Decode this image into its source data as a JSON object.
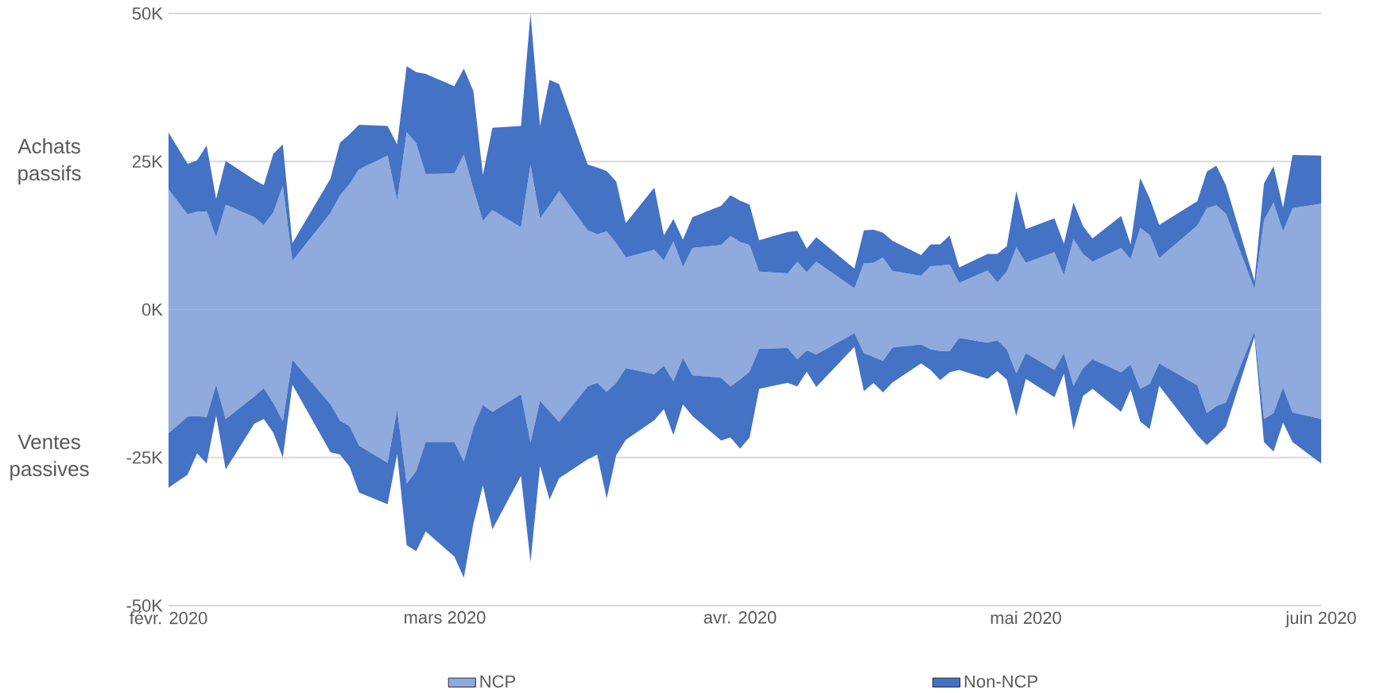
{
  "chart_data": [
    {
      "type": "area",
      "stacked": true,
      "grid": "y",
      "tick_labels": "y",
      "x": [
        "2020-02-01",
        "2020-02-03",
        "2020-02-04",
        "2020-02-05",
        "2020-02-06",
        "2020-02-07",
        "2020-02-10",
        "2020-02-11",
        "2020-02-12",
        "2020-02-13",
        "2020-02-14",
        "2020-02-18",
        "2020-02-19",
        "2020-02-20",
        "2020-02-21",
        "2020-02-24",
        "2020-02-25",
        "2020-02-26",
        "2020-02-27",
        "2020-02-28",
        "2020-03-02",
        "2020-03-03",
        "2020-03-04",
        "2020-03-05",
        "2020-03-06",
        "2020-03-09",
        "2020-03-10",
        "2020-03-11",
        "2020-03-12",
        "2020-03-13",
        "2020-03-16",
        "2020-03-17",
        "2020-03-18",
        "2020-03-19",
        "2020-03-20",
        "2020-03-23",
        "2020-03-24",
        "2020-03-25",
        "2020-03-26",
        "2020-03-27",
        "2020-03-30",
        "2020-03-31",
        "2020-04-01",
        "2020-04-02",
        "2020-04-03",
        "2020-04-06",
        "2020-04-07",
        "2020-04-08",
        "2020-04-09",
        "2020-04-13",
        "2020-04-14",
        "2020-04-15",
        "2020-04-16",
        "2020-04-17",
        "2020-04-20",
        "2020-04-21",
        "2020-04-22",
        "2020-04-23",
        "2020-04-24",
        "2020-04-27",
        "2020-04-28",
        "2020-04-29",
        "2020-04-30",
        "2020-05-01",
        "2020-05-04",
        "2020-05-05",
        "2020-05-06",
        "2020-05-07",
        "2020-05-08",
        "2020-05-11",
        "2020-05-12",
        "2020-05-13",
        "2020-05-14",
        "2020-05-15",
        "2020-05-19",
        "2020-05-20",
        "2020-05-21",
        "2020-05-22",
        "2020-05-25",
        "2020-05-26",
        "2020-05-27",
        "2020-05-28",
        "2020-05-29",
        "2020-06-01"
      ],
      "series": [
        {
          "color": "#8faadc",
          "values": [
            20.3,
            16.1,
            16.5,
            16.6,
            12.2,
            17.7,
            15.6,
            14.3,
            16.4,
            20.9,
            8.2,
            16.3,
            19.3,
            21.2,
            23.7,
            26.0,
            18.4,
            30.0,
            28.1,
            22.9,
            23.0,
            26.2,
            20.4,
            15.0,
            16.8,
            13.9,
            24.5,
            15.4,
            17.6,
            20.0,
            13.4,
            12.7,
            13.2,
            11.2,
            8.8,
            10.1,
            8.3,
            11.5,
            7.2,
            10.4,
            10.9,
            12.4,
            11.4,
            10.9,
            6.4,
            6.1,
            8.1,
            6.3,
            8.1,
            3.6,
            7.8,
            7.9,
            8.8,
            6.5,
            5.7,
            7.3,
            7.4,
            7.6,
            4.5,
            6.6,
            4.6,
            6.4,
            10.5,
            7.9,
            9.7,
            5.8,
            11.9,
            9.4,
            8.1,
            10.4,
            8.5,
            13.8,
            12.6,
            8.7,
            14.2,
            17.1,
            17.6,
            16.2,
            3.5,
            15.1,
            18.1,
            13.2,
            17.1,
            17.9
          ]
        },
        {
          "color": "#4472c4",
          "values": [
            9.6,
            8.5,
            8.7,
            11.1,
            6.5,
            7.4,
            6.3,
            6.7,
            9.9,
            7.0,
            3.0,
            5.8,
            8.9,
            8.4,
            7.5,
            5.0,
            9.5,
            11.1,
            12.0,
            16.9,
            14.7,
            14.5,
            16.5,
            7.7,
            13.9,
            17.1,
            25.5,
            15.6,
            21.2,
            18.1,
            11.1,
            11.3,
            10.2,
            10.4,
            5.8,
            10.5,
            4.2,
            3.8,
            4.6,
            5.2,
            6.6,
            6.9,
            7.0,
            6.8,
            5.3,
            7.0,
            5.2,
            4.0,
            4.1,
            3.3,
            5.6,
            5.6,
            4.2,
            5.1,
            3.5,
            3.7,
            3.6,
            4.9,
            2.6,
            2.8,
            4.8,
            4.3,
            9.5,
            5.7,
            5.7,
            5.3,
            6.2,
            4.7,
            3.9,
            5.4,
            2.5,
            8.4,
            6.2,
            5.6,
            4.1,
            6.2,
            6.7,
            4.8,
            1.3,
            6.2,
            6.1,
            4.0,
            9.0,
            8.1
          ]
        }
      ],
      "xlim": [
        "2020-02-01",
        "2020-06-01"
      ],
      "xticks": [
        {
          "value": "2020-02-01",
          "label": null
        },
        {
          "value": "2020-03-01",
          "label": null
        },
        {
          "value": "2020-04-01",
          "label": null
        },
        {
          "value": "2020-05-01",
          "label": null
        },
        {
          "value": "2020-06-01",
          "label": null
        }
      ],
      "ylim": [
        0,
        50
      ],
      "yticks": [
        {
          "value": 0,
          "label": "0K"
        },
        {
          "value": 25,
          "label": "25K"
        },
        {
          "value": 50,
          "label": "50K"
        }
      ],
      "annotations": [
        "Achats passifs"
      ]
    },
    {
      "type": "area",
      "stacked": true,
      "grid": "y",
      "legend": "bottom",
      "x": [
        "2020-02-01",
        "2020-02-03",
        "2020-02-04",
        "2020-02-05",
        "2020-02-06",
        "2020-02-07",
        "2020-02-10",
        "2020-02-11",
        "2020-02-12",
        "2020-02-13",
        "2020-02-14",
        "2020-02-18",
        "2020-02-19",
        "2020-02-20",
        "2020-02-21",
        "2020-02-24",
        "2020-02-25",
        "2020-02-26",
        "2020-02-27",
        "2020-02-28",
        "2020-03-02",
        "2020-03-03",
        "2020-03-04",
        "2020-03-05",
        "2020-03-06",
        "2020-03-09",
        "2020-03-10",
        "2020-03-11",
        "2020-03-12",
        "2020-03-13",
        "2020-03-16",
        "2020-03-17",
        "2020-03-18",
        "2020-03-19",
        "2020-03-20",
        "2020-03-23",
        "2020-03-24",
        "2020-03-25",
        "2020-03-26",
        "2020-03-27",
        "2020-03-30",
        "2020-03-31",
        "2020-04-01",
        "2020-04-02",
        "2020-04-03",
        "2020-04-06",
        "2020-04-07",
        "2020-04-08",
        "2020-04-09",
        "2020-04-13",
        "2020-04-14",
        "2020-04-15",
        "2020-04-16",
        "2020-04-17",
        "2020-04-20",
        "2020-04-21",
        "2020-04-22",
        "2020-04-23",
        "2020-04-24",
        "2020-04-27",
        "2020-04-28",
        "2020-04-29",
        "2020-04-30",
        "2020-05-01",
        "2020-05-04",
        "2020-05-05",
        "2020-05-06",
        "2020-05-07",
        "2020-05-08",
        "2020-05-11",
        "2020-05-12",
        "2020-05-13",
        "2020-05-14",
        "2020-05-15",
        "2020-05-19",
        "2020-05-20",
        "2020-05-21",
        "2020-05-22",
        "2020-05-25",
        "2020-05-26",
        "2020-05-27",
        "2020-05-28",
        "2020-05-29",
        "2020-06-01"
      ],
      "series": [
        {
          "name": "NCP",
          "color": "#8faadc",
          "values": [
            -20.9,
            -18.1,
            -18.0,
            -18.2,
            -12.7,
            -18.5,
            -14.7,
            -13.3,
            -15.8,
            -18.9,
            -8.5,
            -16.0,
            -18.8,
            -19.7,
            -23.0,
            -25.9,
            -16.9,
            -29.4,
            -27.3,
            -22.4,
            -22.4,
            -25.7,
            -20.0,
            -16.1,
            -17.3,
            -14.3,
            -22.5,
            -15.4,
            -17.2,
            -19.0,
            -13.0,
            -12.4,
            -13.9,
            -12.4,
            -9.9,
            -10.9,
            -9.5,
            -12.1,
            -8.2,
            -11.1,
            -11.5,
            -13.0,
            -11.8,
            -10.5,
            -6.6,
            -6.5,
            -8.4,
            -6.9,
            -7.6,
            -4.0,
            -7.4,
            -8.0,
            -8.7,
            -6.4,
            -5.9,
            -6.7,
            -7.0,
            -7.0,
            -4.8,
            -5.6,
            -5.2,
            -6.7,
            -10.8,
            -7.4,
            -10.2,
            -7.4,
            -12.9,
            -9.9,
            -8.4,
            -10.6,
            -9.3,
            -13.4,
            -12.6,
            -9.1,
            -12.8,
            -17.5,
            -16.3,
            -15.7,
            -3.7,
            -18.5,
            -17.5,
            -13.2,
            -17.4,
            -18.5
          ]
        },
        {
          "name": "Non-NCP",
          "color": "#4472c4",
          "values": [
            -9.2,
            -9.8,
            -6.3,
            -7.8,
            -5.2,
            -8.5,
            -4.6,
            -5.2,
            -5.0,
            -6.1,
            -4.2,
            -8.1,
            -5.7,
            -6.8,
            -7.9,
            -7.0,
            -7.5,
            -10.4,
            -13.5,
            -15.1,
            -19.3,
            -19.6,
            -16.2,
            -13.6,
            -19.8,
            -13.8,
            -20.2,
            -11.0,
            -14.9,
            -9.5,
            -12.3,
            -12.1,
            -18.0,
            -12.2,
            -12.1,
            -7.8,
            -7.3,
            -9.1,
            -7.8,
            -6.9,
            -10.6,
            -8.6,
            -11.7,
            -11.1,
            -6.8,
            -5.9,
            -4.6,
            -3.6,
            -5.5,
            -2.3,
            -6.4,
            -4.4,
            -5.3,
            -5.9,
            -3.2,
            -3.5,
            -4.9,
            -3.6,
            -5.4,
            -6.1,
            -5.2,
            -5.1,
            -7.2,
            -4.3,
            -4.6,
            -3.4,
            -7.4,
            -4.7,
            -5.0,
            -6.7,
            -4.2,
            -5.5,
            -7.6,
            -3.8,
            -8.4,
            -5.4,
            -5.1,
            -4.1,
            -0.9,
            -3.9,
            -6.5,
            -5.9,
            -5.0,
            -7.5
          ]
        }
      ],
      "xlim": [
        "2020-02-01",
        "2020-06-01"
      ],
      "xticks": [
        {
          "value": "2020-02-01",
          "label": "févr. 2020"
        },
        {
          "value": "2020-03-01",
          "label": "mars 2020"
        },
        {
          "value": "2020-04-01",
          "label": "avr. 2020"
        },
        {
          "value": "2020-05-01",
          "label": "mai 2020"
        },
        {
          "value": "2020-06-01",
          "label": "juin 2020"
        }
      ],
      "ylim": [
        -50,
        0
      ],
      "yticks": [
        {
          "value": -50,
          "label": "-50K"
        },
        {
          "value": -25,
          "label": "-25K"
        }
      ],
      "annotations": [
        "Ventes passives"
      ]
    }
  ]
}
